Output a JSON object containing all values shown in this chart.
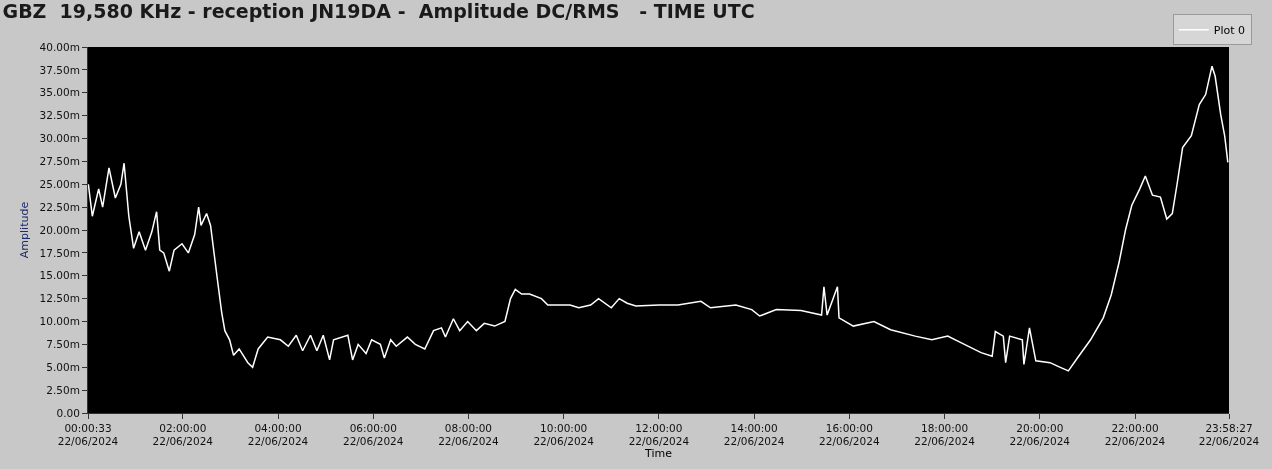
{
  "chart_data": {
    "type": "line",
    "title": "GBZ  19,580 KHz - reception JN19DA -  Amplitude DC/RMS   - TIME UTC",
    "xlabel": "Time",
    "ylabel": "Amplitude",
    "legend": "top right",
    "grid": false,
    "marker": "none",
    "line_style": "solid",
    "xlim": [
      "2024-06-22T00:00:33",
      "2024-06-22T23:58:27"
    ],
    "xticks": [
      {
        "value": "2024-06-22T00:00:33",
        "label": "00:00:33\n22/06/2024"
      },
      {
        "value": "2024-06-22T02:00",
        "label": "02:00:00\n22/06/2024"
      },
      {
        "value": "2024-06-22T04:00",
        "label": "04:00:00\n22/06/2024"
      },
      {
        "value": "2024-06-22T06:00",
        "label": "06:00:00\n22/06/2024"
      },
      {
        "value": "2024-06-22T08:00",
        "label": "08:00:00\n22/06/2024"
      },
      {
        "value": "2024-06-22T10:00",
        "label": "10:00:00\n22/06/2024"
      },
      {
        "value": "2024-06-22T12:00",
        "label": "12:00:00\n22/06/2024"
      },
      {
        "value": "2024-06-22T14:00",
        "label": "14:00:00\n22/06/2024"
      },
      {
        "value": "2024-06-22T16:00",
        "label": "16:00:00\n22/06/2024"
      },
      {
        "value": "2024-06-22T18:00",
        "label": "18:00:00\n22/06/2024"
      },
      {
        "value": "2024-06-22T20:00",
        "label": "20:00:00\n22/06/2024"
      },
      {
        "value": "2024-06-22T22:00",
        "label": "22:00:00\n22/06/2024"
      },
      {
        "value": "2024-06-22T23:58:27",
        "label": "23:58:27\n22/06/2024"
      }
    ],
    "ylim": [
      0,
      40
    ],
    "yticks": [
      {
        "value": 0,
        "label": "0.00"
      },
      {
        "value": 2.5,
        "label": "2.50m"
      },
      {
        "value": 5,
        "label": "5.00m"
      },
      {
        "value": 7.5,
        "label": "7.50m"
      },
      {
        "value": 10,
        "label": "10.00m"
      },
      {
        "value": 12.5,
        "label": "12.50m"
      },
      {
        "value": 15,
        "label": "15.00m"
      },
      {
        "value": 17.5,
        "label": "17.50m"
      },
      {
        "value": 20,
        "label": "20.00m"
      },
      {
        "value": 22.5,
        "label": "22.50m"
      },
      {
        "value": 25,
        "label": "25.00m"
      },
      {
        "value": 27.5,
        "label": "27.50m"
      },
      {
        "value": 30,
        "label": "30.00m"
      },
      {
        "value": 32.5,
        "label": "32.50m"
      },
      {
        "value": 35,
        "label": "35.00m"
      },
      {
        "value": 37.5,
        "label": "37.50m"
      },
      {
        "value": 40,
        "label": "40.00m"
      }
    ],
    "series": [
      {
        "name": "Plot 0",
        "color": "#ffffff",
        "x": [
          "2024-06-22T00:01",
          "2024-06-22T00:06",
          "2024-06-22T00:14",
          "2024-06-22T00:19",
          "2024-06-22T00:27",
          "2024-06-22T00:35",
          "2024-06-22T00:42",
          "2024-06-22T00:46",
          "2024-06-22T00:52",
          "2024-06-22T00:58",
          "2024-06-22T01:05",
          "2024-06-22T01:13",
          "2024-06-22T01:21",
          "2024-06-22T01:27",
          "2024-06-22T01:31",
          "2024-06-22T01:36",
          "2024-06-22T01:43",
          "2024-06-22T01:49",
          "2024-06-22T01:59",
          "2024-06-22T02:07",
          "2024-06-22T02:15",
          "2024-06-22T02:20",
          "2024-06-22T02:23",
          "2024-06-22T02:30",
          "2024-06-22T02:35",
          "2024-06-22T02:43",
          "2024-06-22T02:49",
          "2024-06-22T02:53",
          "2024-06-22T02:59",
          "2024-06-22T03:04",
          "2024-06-22T03:11",
          "2024-06-22T03:22",
          "2024-06-22T03:28",
          "2024-06-22T03:35",
          "2024-06-22T03:47",
          "2024-06-22T04:03",
          "2024-06-22T04:13",
          "2024-06-22T04:23",
          "2024-06-22T04:31",
          "2024-06-22T04:41",
          "2024-06-22T04:49",
          "2024-06-22T04:57",
          "2024-06-22T05:05",
          "2024-06-22T05:10",
          "2024-06-22T05:28",
          "2024-06-22T05:34",
          "2024-06-22T05:41",
          "2024-06-22T05:51",
          "2024-06-22T05:58",
          "2024-06-22T06:09",
          "2024-06-22T06:14",
          "2024-06-22T06:22",
          "2024-06-22T06:29",
          "2024-06-22T06:43",
          "2024-06-22T06:53",
          "2024-06-22T07:05",
          "2024-06-22T07:16",
          "2024-06-22T07:26",
          "2024-06-22T07:31",
          "2024-06-22T07:41",
          "2024-06-22T07:49",
          "2024-06-22T07:59",
          "2024-06-22T08:10",
          "2024-06-22T08:20",
          "2024-06-22T08:33",
          "2024-06-22T08:46",
          "2024-06-22T08:53",
          "2024-06-22T08:59",
          "2024-06-22T09:07",
          "2024-06-22T09:17",
          "2024-06-22T09:32",
          "2024-06-22T09:40",
          "2024-06-22T09:53",
          "2024-06-22T10:08",
          "2024-06-22T10:19",
          "2024-06-22T10:34",
          "2024-06-22T10:44",
          "2024-06-22T11:00",
          "2024-06-22T11:10",
          "2024-06-22T11:20",
          "2024-06-22T11:31",
          "2024-06-22T12:00",
          "2024-06-22T12:24",
          "2024-06-22T12:53",
          "2024-06-22T13:05",
          "2024-06-22T13:37",
          "2024-06-22T13:57",
          "2024-06-22T14:07",
          "2024-06-22T14:28",
          "2024-06-22T14:59",
          "2024-06-22T15:25",
          "2024-06-22T15:28",
          "2024-06-22T15:32",
          "2024-06-22T15:45",
          "2024-06-22T15:47",
          "2024-06-22T16:05",
          "2024-06-22T16:31",
          "2024-06-22T16:52",
          "2024-06-22T17:23",
          "2024-06-22T17:44",
          "2024-06-22T18:04",
          "2024-06-22T18:25",
          "2024-06-22T18:46",
          "2024-06-22T19:00",
          "2024-06-22T19:04",
          "2024-06-22T19:14",
          "2024-06-22T19:17",
          "2024-06-22T19:22",
          "2024-06-22T19:38",
          "2024-06-22T19:40",
          "2024-06-22T19:47",
          "2024-06-22T19:55",
          "2024-06-22T20:13",
          "2024-06-22T20:23",
          "2024-06-22T20:36",
          "2024-06-22T20:49",
          "2024-06-22T21:04",
          "2024-06-22T21:20",
          "2024-06-22T21:30",
          "2024-06-22T21:40",
          "2024-06-22T21:48",
          "2024-06-22T21:56",
          "2024-06-22T22:06",
          "2024-06-22T22:13",
          "2024-06-22T22:22",
          "2024-06-22T22:32",
          "2024-06-22T22:40",
          "2024-06-22T22:47",
          "2024-06-22T22:53",
          "2024-06-22T23:00",
          "2024-06-22T23:11",
          "2024-06-22T23:21",
          "2024-06-22T23:29",
          "2024-06-22T23:37",
          "2024-06-22T23:41",
          "2024-06-22T23:48",
          "2024-06-22T23:53",
          "2024-06-22T23:57"
        ],
        "values": [
          25.0,
          21.5,
          24.5,
          22.5,
          26.8,
          23.5,
          25.0,
          27.3,
          21.5,
          18.0,
          19.8,
          17.8,
          19.8,
          22.0,
          17.8,
          17.5,
          15.5,
          17.8,
          18.5,
          17.5,
          19.5,
          22.5,
          20.5,
          21.8,
          20.5,
          15.0,
          11.0,
          9.0,
          8.0,
          6.3,
          7.0,
          5.5,
          5.0,
          7.0,
          8.3,
          8.0,
          7.3,
          8.5,
          6.8,
          8.5,
          6.8,
          8.5,
          5.8,
          8.0,
          8.5,
          5.8,
          7.5,
          6.5,
          8.0,
          7.5,
          6.0,
          8.0,
          7.3,
          8.3,
          7.5,
          7.0,
          9.0,
          9.3,
          8.3,
          10.3,
          9.0,
          10.0,
          9.0,
          9.8,
          9.5,
          10.0,
          12.5,
          13.5,
          13.0,
          13.0,
          12.5,
          11.8,
          11.8,
          11.8,
          11.5,
          11.8,
          12.5,
          11.5,
          12.5,
          12.0,
          11.7,
          11.8,
          11.8,
          12.2,
          11.5,
          11.8,
          11.3,
          10.6,
          11.3,
          11.2,
          10.7,
          13.8,
          10.7,
          13.8,
          10.4,
          9.5,
          10.0,
          9.1,
          8.4,
          8.0,
          8.4,
          7.5,
          6.6,
          6.2,
          8.9,
          8.4,
          5.5,
          8.4,
          8.0,
          5.3,
          9.3,
          5.7,
          5.5,
          5.1,
          4.6,
          6.2,
          8.0,
          10.4,
          12.9,
          16.5,
          20.0,
          22.7,
          24.5,
          25.9,
          23.8,
          23.6,
          21.2,
          21.8,
          25.0,
          29.0,
          30.3,
          33.7,
          34.8,
          37.9,
          36.8,
          32.6,
          30.3,
          27.4
        ]
      }
    ]
  }
}
